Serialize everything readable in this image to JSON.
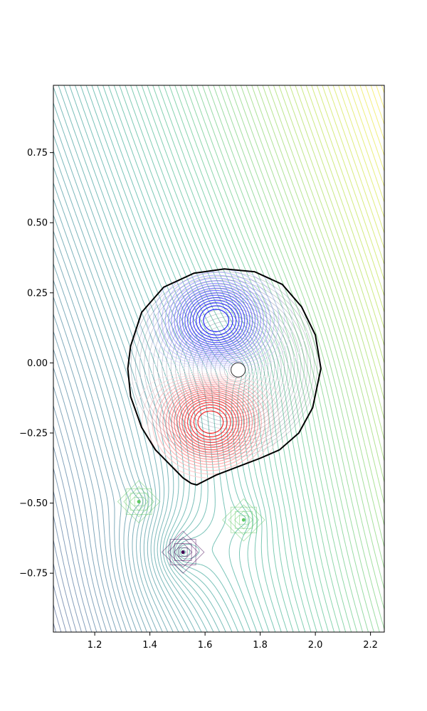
{
  "chart_data": {
    "type": "contour",
    "title": "",
    "xlabel": "",
    "ylabel": "",
    "xlim": [
      1.05,
      2.25
    ],
    "ylim": [
      -0.96,
      0.99
    ],
    "x_ticks": [
      {
        "value": 1.2,
        "label": "1.2"
      },
      {
        "value": 1.4,
        "label": "1.4"
      },
      {
        "value": 1.6,
        "label": "1.6"
      },
      {
        "value": 1.8,
        "label": "1.8"
      },
      {
        "value": 2.0,
        "label": "2.0"
      },
      {
        "value": 2.2,
        "label": "2.2"
      }
    ],
    "y_ticks": [
      {
        "value": 0.75,
        "label": "0.75"
      },
      {
        "value": 0.5,
        "label": "0.50"
      },
      {
        "value": 0.25,
        "label": "0.25"
      },
      {
        "value": 0.0,
        "label": "0.00"
      },
      {
        "value": -0.25,
        "label": "−0.25"
      },
      {
        "value": -0.5,
        "label": "−0.50"
      },
      {
        "value": -0.75,
        "label": "−0.75"
      }
    ],
    "grid": false,
    "legend": "none",
    "colormaps": {
      "vacuum_field": "viridis",
      "plasma_field": "bwr"
    },
    "plasma_boundary": {
      "color": "#000000",
      "points": [
        [
          2.02,
          -0.02
        ],
        [
          2.0,
          0.1
        ],
        [
          1.95,
          0.2
        ],
        [
          1.88,
          0.28
        ],
        [
          1.78,
          0.325
        ],
        [
          1.67,
          0.335
        ],
        [
          1.56,
          0.32
        ],
        [
          1.45,
          0.27
        ],
        [
          1.37,
          0.18
        ],
        [
          1.33,
          0.06
        ],
        [
          1.32,
          -0.02
        ],
        [
          1.33,
          -0.12
        ],
        [
          1.37,
          -0.23
        ],
        [
          1.42,
          -0.31
        ],
        [
          1.48,
          -0.37
        ],
        [
          1.52,
          -0.41
        ],
        [
          1.55,
          -0.43
        ],
        [
          1.57,
          -0.435
        ],
        [
          1.59,
          -0.425
        ],
        [
          1.64,
          -0.4
        ],
        [
          1.72,
          -0.37
        ],
        [
          1.8,
          -0.34
        ],
        [
          1.87,
          -0.31
        ],
        [
          1.94,
          -0.25
        ],
        [
          1.99,
          -0.16
        ],
        [
          2.02,
          -0.02
        ]
      ]
    },
    "magnetic_axis": {
      "x": 1.72,
      "y": -0.025
    },
    "lobes": [
      {
        "x": 1.64,
        "y": 0.15,
        "sign": "negative",
        "color": "#0000ff"
      },
      {
        "x": 1.62,
        "y": -0.21,
        "sign": "positive",
        "color": "#ff0000"
      }
    ],
    "coils": [
      {
        "x": 1.52,
        "y": -0.675,
        "color": "#440154"
      },
      {
        "x": 1.36,
        "y": -0.495,
        "color": "#5ec962"
      },
      {
        "x": 1.74,
        "y": -0.56,
        "color": "#5ec962"
      }
    ]
  }
}
